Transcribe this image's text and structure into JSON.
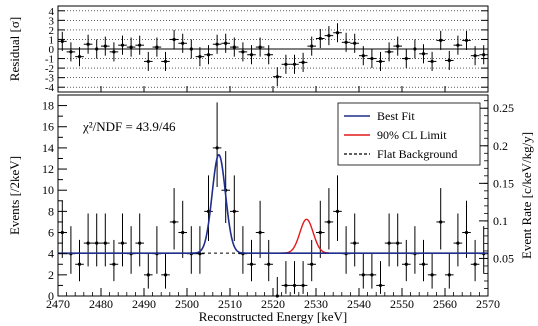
{
  "chart_data": {
    "type": "line",
    "xlabel": "Reconstructed Energy [keV]",
    "xlim": [
      2470,
      2570
    ],
    "x_ticks": [
      2470,
      2480,
      2490,
      2500,
      2510,
      2520,
      2530,
      2540,
      2550,
      2560,
      2570
    ],
    "x_tick_labels": [
      "2470",
      "2480",
      "2490",
      "2500",
      "2510",
      "2520",
      "2530",
      "2540",
      "2550",
      "2560",
      "2570"
    ],
    "residual_panel": {
      "ylabel": "Residual [σ]",
      "ylim": [
        -4.5,
        4.5
      ],
      "y_ticks": [
        -4,
        -3,
        -2,
        -1,
        0,
        1,
        2,
        3,
        4
      ],
      "y_tick_labels": [
        "-4",
        "-3",
        "-2",
        "-1",
        "0",
        "1",
        "2",
        "3",
        "4"
      ],
      "grid": "dotted horizontal at each integer",
      "points": {
        "x": [
          2471,
          2473,
          2475,
          2477,
          2479,
          2481,
          2483,
          2485,
          2487,
          2489,
          2491,
          2493,
          2495,
          2497,
          2499,
          2501,
          2503,
          2505,
          2507,
          2509,
          2511,
          2513,
          2515,
          2517,
          2519,
          2521,
          2523,
          2525,
          2527,
          2529,
          2531,
          2533,
          2535,
          2537,
          2539,
          2541,
          2543,
          2545,
          2547,
          2549,
          2551,
          2553,
          2555,
          2557,
          2559,
          2561,
          2563,
          2565,
          2567,
          2569
        ],
        "y": [
          0.8,
          -0.3,
          -0.8,
          0.5,
          0.0,
          0.3,
          -0.3,
          0.4,
          0.2,
          0.4,
          -1.3,
          0.2,
          -1.3,
          1.0,
          0.6,
          0.0,
          -0.8,
          -0.6,
          0.5,
          0.6,
          0.2,
          -0.3,
          -0.6,
          0.2,
          -0.6,
          -2.9,
          -1.6,
          -1.6,
          -1.4,
          0.3,
          1.1,
          1.4,
          1.7,
          0.7,
          0.6,
          -0.7,
          -1.0,
          -1.3,
          -0.3,
          0.3,
          -1.0,
          0.0,
          -0.5,
          -1.3,
          0.9,
          -1.2,
          0.4,
          0.9,
          -0.7,
          -0.6
        ],
        "err": [
          1.0,
          1.0,
          1.0,
          1.0,
          1.0,
          1.0,
          1.0,
          1.0,
          1.0,
          1.0,
          1.0,
          1.0,
          1.0,
          1.0,
          1.0,
          1.0,
          1.0,
          1.0,
          1.0,
          1.0,
          1.0,
          1.0,
          1.0,
          1.0,
          1.0,
          1.0,
          1.0,
          1.0,
          1.0,
          1.0,
          1.0,
          1.0,
          1.0,
          1.0,
          1.0,
          1.0,
          1.0,
          1.0,
          1.0,
          1.0,
          1.0,
          1.0,
          1.0,
          1.0,
          1.0,
          1.0,
          1.0,
          1.0,
          1.0,
          1.0
        ]
      }
    },
    "main_panel": {
      "ylabel": "Events [/2keV]",
      "ylim": [
        0,
        19
      ],
      "y_ticks": [
        0,
        2,
        4,
        6,
        8,
        10,
        12,
        14,
        16,
        18
      ],
      "y_tick_labels": [
        "0",
        "2",
        "4",
        "6",
        "8",
        "10",
        "12",
        "14",
        "16",
        "18"
      ],
      "right_axis": {
        "label": "Event Rate [c/keV/kg/y]",
        "ticks": [
          0.05,
          0.1,
          0.15,
          0.2,
          0.25
        ],
        "tick_labels": [
          "0.05",
          "0.1",
          "0.15",
          "0.2",
          "0.25"
        ],
        "events_per_unit": 71
      },
      "annotation": "χ²/NDF = 43.9/46",
      "legend": {
        "position": "top-right",
        "entries": [
          {
            "label": "Best Fit",
            "color": "#1f2d8c",
            "style": "solid"
          },
          {
            "label": "90% CL Limit",
            "color": "#e31a1c",
            "style": "solid"
          },
          {
            "label": "Flat Background",
            "color": "#000000",
            "style": "dashed"
          }
        ]
      },
      "data": {
        "x": [
          2471,
          2473,
          2475,
          2477,
          2479,
          2481,
          2483,
          2485,
          2487,
          2489,
          2491,
          2493,
          2495,
          2497,
          2499,
          2501,
          2503,
          2505,
          2507,
          2509,
          2511,
          2513,
          2515,
          2517,
          2519,
          2521,
          2523,
          2525,
          2527,
          2529,
          2531,
          2533,
          2535,
          2537,
          2539,
          2541,
          2543,
          2545,
          2547,
          2549,
          2551,
          2553,
          2555,
          2557,
          2559,
          2561,
          2563,
          2565,
          2567,
          2569
        ],
        "y": [
          6,
          4,
          3,
          5,
          5,
          5,
          3,
          5,
          4,
          5,
          2,
          4,
          2,
          7,
          6,
          4,
          4,
          8,
          14,
          10,
          8,
          4,
          3,
          6,
          3,
          0,
          1,
          1,
          1,
          3,
          6,
          7,
          8,
          4,
          5,
          2,
          2,
          1,
          5,
          5,
          3,
          4,
          3,
          2,
          7,
          2,
          5,
          6,
          3,
          4
        ],
        "err_low": [
          2.4,
          1.9,
          1.6,
          2.2,
          2.2,
          2.2,
          1.6,
          2.2,
          1.9,
          2.2,
          1.3,
          1.9,
          1.3,
          2.6,
          2.4,
          1.9,
          1.9,
          2.8,
          3.7,
          3.1,
          2.8,
          1.9,
          1.6,
          2.4,
          1.6,
          0.0,
          0.8,
          0.8,
          0.8,
          1.6,
          2.4,
          2.6,
          2.8,
          1.9,
          2.2,
          1.3,
          1.3,
          0.8,
          2.2,
          2.2,
          1.6,
          1.9,
          1.6,
          1.3,
          2.6,
          1.3,
          2.2,
          2.4,
          1.6,
          1.9
        ],
        "err_high": [
          3.0,
          2.6,
          2.3,
          2.8,
          2.8,
          2.8,
          2.3,
          2.8,
          2.6,
          2.8,
          2.1,
          2.6,
          2.1,
          3.2,
          3.0,
          2.6,
          2.6,
          3.4,
          4.3,
          3.7,
          3.4,
          2.6,
          2.3,
          3.0,
          2.3,
          1.8,
          2.3,
          2.3,
          2.3,
          2.3,
          3.0,
          3.2,
          3.4,
          2.6,
          2.8,
          2.1,
          2.1,
          2.3,
          2.8,
          2.8,
          2.3,
          2.6,
          2.3,
          2.1,
          3.2,
          2.1,
          2.8,
          3.0,
          2.3,
          2.6
        ]
      },
      "best_fit": {
        "background": 4.05,
        "peak_center": 2507.4,
        "peak_amplitude": 9.3,
        "peak_sigma": 1.55
      },
      "cl_limit": {
        "background": 4.05,
        "peak_center": 2527.8,
        "peak_amplitude": 3.2,
        "peak_sigma": 1.55,
        "x_range": [
          2520,
          2533
        ]
      },
      "flat_background": 4.05
    }
  }
}
